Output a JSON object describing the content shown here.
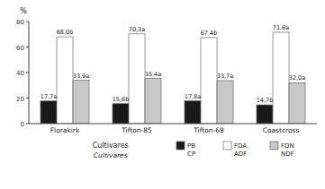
{
  "chart_data": {
    "type": "bar",
    "categories": [
      "Florakirk",
      "Tifton-85",
      "Tifton-68",
      "Coastcross"
    ],
    "series": [
      {
        "name": "PB\nCP",
        "color": "#1a1a1a",
        "values": [
          17.7,
          15.6,
          17.8,
          14.7
        ],
        "value_labels": [
          "17,7a",
          "15,6b",
          "17,8a",
          "14,7b"
        ]
      },
      {
        "name": "FDA\nADF",
        "color": "#ffffff",
        "values": [
          68.0,
          70.3,
          67.4,
          71.6
        ],
        "value_labels": [
          "68,0b",
          "70,3a",
          "67,4b",
          "71,6a"
        ]
      },
      {
        "name": "FDN\nNDF",
        "color": "#c8c8c8",
        "values": [
          33.9,
          35.4,
          33.7,
          32.0
        ],
        "value_labels": [
          "33,9a",
          "35,4a",
          "33,7a",
          "32,0a"
        ]
      }
    ],
    "y_label": "%",
    "x_label": "Cultivares",
    "x_label_sub": "Cultivares",
    "ylim": [
      0,
      80
    ],
    "yticks": [
      0,
      20,
      40,
      60,
      80
    ],
    "grid": false,
    "data_labels": true,
    "legend": "bottom"
  }
}
